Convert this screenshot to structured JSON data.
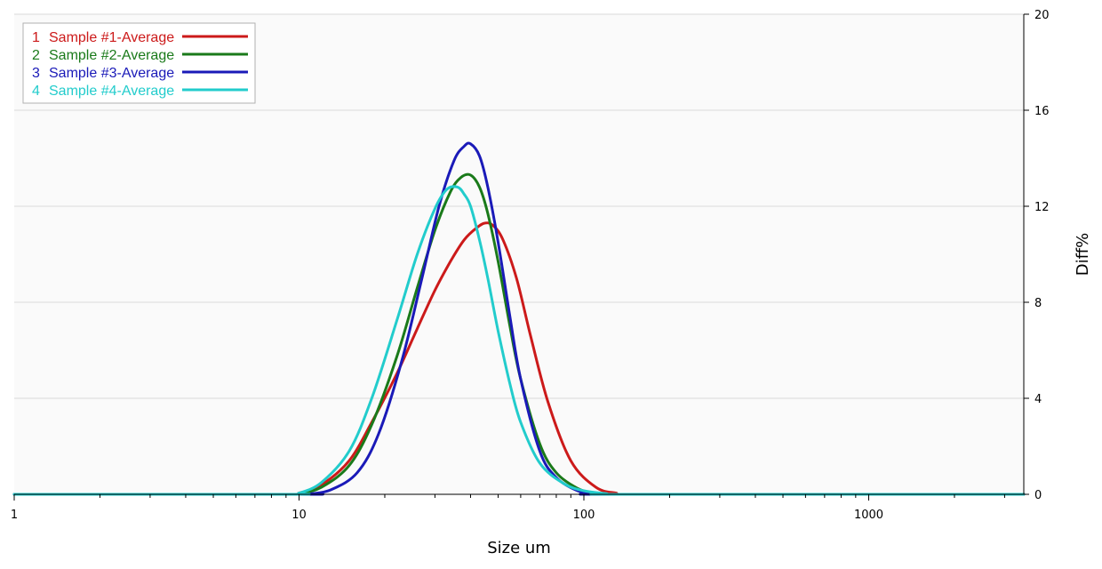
{
  "chart_data": {
    "type": "line",
    "title": "",
    "xlabel": "Size um",
    "ylabel": "Diff%",
    "x_scale": "log",
    "xlim": [
      1,
      3500
    ],
    "ylim": [
      0,
      20
    ],
    "x_ticks": [
      "1",
      "10",
      "100",
      "1000"
    ],
    "y_ticks": [
      "0",
      "4",
      "8",
      "12",
      "16",
      "20"
    ],
    "y_axis_side": "right",
    "grid": true,
    "legend_position": "top-left",
    "series": [
      {
        "name": "Sample #1-Average",
        "index_label": "1",
        "color": "#cc1a1a",
        "x": [
          1,
          9,
          10,
          12,
          15,
          18,
          22,
          26,
          30,
          34,
          38,
          42,
          45,
          48,
          52,
          58,
          65,
          75,
          90,
          110,
          130,
          150,
          3500
        ],
        "y": [
          0,
          0,
          0.05,
          0.4,
          1.4,
          3.0,
          5.0,
          6.9,
          8.5,
          9.7,
          10.6,
          11.1,
          11.3,
          11.2,
          10.6,
          9.0,
          6.6,
          3.8,
          1.4,
          0.3,
          0.05,
          0,
          0
        ]
      },
      {
        "name": "Sample #2-Average",
        "index_label": "2",
        "color": "#1a7a1a",
        "x": [
          1,
          9,
          10,
          12,
          15,
          18,
          22,
          26,
          30,
          34,
          37,
          40,
          43,
          46,
          50,
          55,
          60,
          70,
          80,
          95,
          110,
          130,
          3500
        ],
        "y": [
          0,
          0,
          0.02,
          0.3,
          1.2,
          2.9,
          5.7,
          8.6,
          11.0,
          12.6,
          13.2,
          13.3,
          12.8,
          11.7,
          9.7,
          7.0,
          4.8,
          2.1,
          0.9,
          0.25,
          0.05,
          0,
          0
        ]
      },
      {
        "name": "Sample #3-Average",
        "index_label": "3",
        "color": "#1a1ab8",
        "x": [
          1,
          10,
          11,
          13,
          16,
          19,
          23,
          27,
          31,
          35,
          38,
          40,
          43,
          46,
          50,
          55,
          60,
          70,
          80,
          95,
          110,
          130,
          3500
        ],
        "y": [
          0,
          0,
          0.02,
          0.2,
          0.9,
          2.5,
          5.6,
          9.0,
          12.0,
          13.9,
          14.5,
          14.6,
          14.1,
          12.8,
          10.5,
          7.4,
          4.8,
          1.8,
          0.7,
          0.15,
          0.03,
          0,
          0
        ]
      },
      {
        "name": "Sample #4-Average",
        "index_label": "4",
        "color": "#22cccc",
        "x": [
          1,
          9,
          10,
          12,
          15,
          18,
          22,
          26,
          30,
          33,
          36,
          38,
          40,
          43,
          46,
          50,
          55,
          60,
          70,
          85,
          100,
          120,
          140,
          3500
        ],
        "y": [
          0,
          0,
          0.05,
          0.5,
          1.8,
          4.0,
          7.2,
          10.0,
          11.9,
          12.7,
          12.8,
          12.5,
          12.0,
          10.6,
          9.0,
          6.8,
          4.6,
          3.0,
          1.3,
          0.45,
          0.15,
          0.03,
          0,
          0
        ]
      }
    ]
  }
}
